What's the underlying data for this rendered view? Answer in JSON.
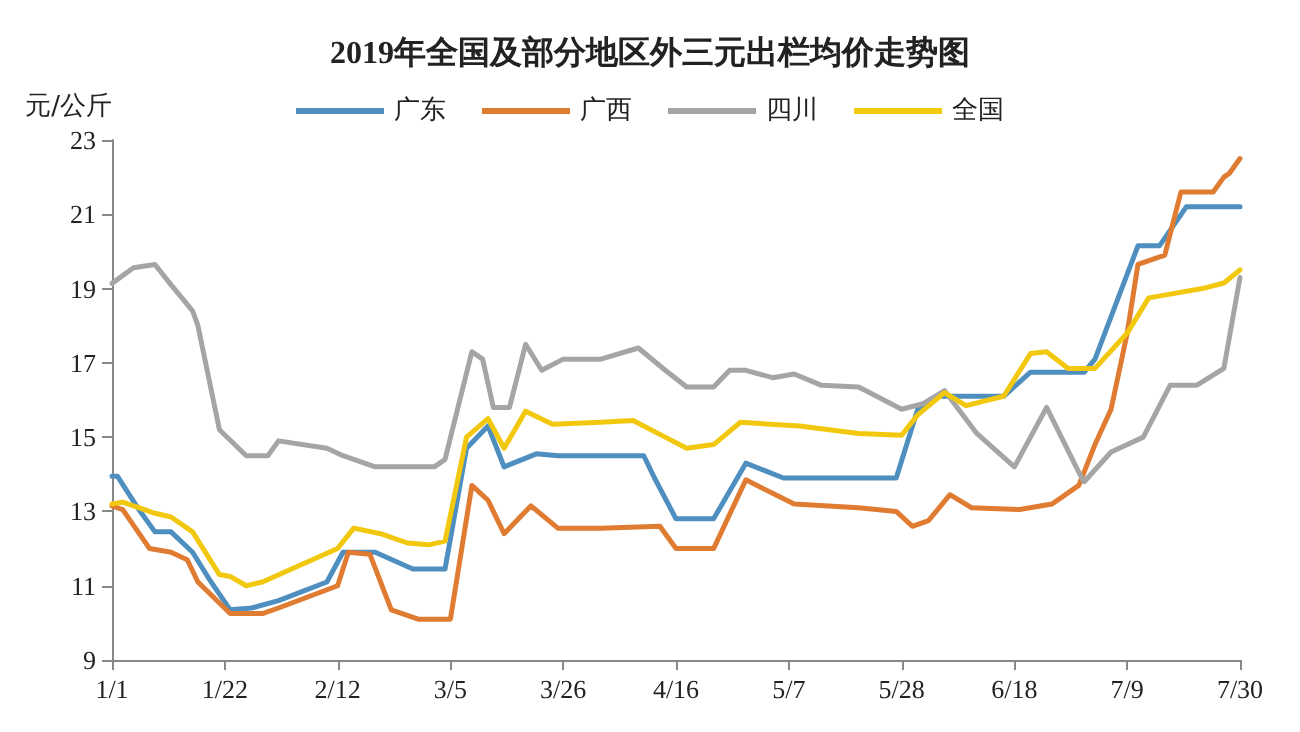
{
  "chart_data": {
    "type": "line",
    "title": "2019年全国及部分地区外三元出栏均价走势图",
    "ylabel": "元/公斤",
    "xlim": [
      "--01-01",
      "--07-30"
    ],
    "xticks": [
      {
        "value": "--01-01",
        "label": "1/1"
      },
      {
        "value": "--01-22",
        "label": "1/22"
      },
      {
        "value": "--02-12",
        "label": "2/12"
      },
      {
        "value": "--03-05",
        "label": "3/5"
      },
      {
        "value": "--03-26",
        "label": "3/26"
      },
      {
        "value": "--04-16",
        "label": "4/16"
      },
      {
        "value": "--05-07",
        "label": "5/7"
      },
      {
        "value": "--05-28",
        "label": "5/28"
      },
      {
        "value": "--06-18",
        "label": "6/18"
      },
      {
        "value": "--07-09",
        "label": "7/9"
      },
      {
        "value": "--07-30",
        "label": "7/30"
      }
    ],
    "ylim": [
      9,
      23
    ],
    "yticks": [
      9,
      11,
      13,
      15,
      17,
      19,
      21,
      23
    ],
    "grid": false,
    "legend": "top",
    "marker": "none",
    "line_style": "solid",
    "series": [
      {
        "name": "广东",
        "color": "#4e8fc0",
        "x": [
          "--01-01",
          "--01-02",
          "--01-06",
          "--01-09",
          "--01-12",
          "--01-16",
          "--01-19",
          "--01-23",
          "--01-27",
          "--02-01",
          "--02-10",
          "--02-13",
          "--02-19",
          "--02-26",
          "--03-04",
          "--03-08",
          "--03-12",
          "--03-15",
          "--03-21",
          "--03-25",
          "--04-10",
          "--04-12",
          "--04-16",
          "--04-23",
          "--04-29",
          "--05-06",
          "--05-20",
          "--05-27",
          "--05-31",
          "--06-04",
          "--06-16",
          "--06-21",
          "--07-01",
          "--07-03",
          "--07-11",
          "--07-15",
          "--07-20",
          "--07-30"
        ],
        "values": [
          13.95,
          13.95,
          13.05,
          12.45,
          12.45,
          11.9,
          11.2,
          10.35,
          10.4,
          10.6,
          11.1,
          11.9,
          11.9,
          11.45,
          11.45,
          14.7,
          15.3,
          14.2,
          14.55,
          14.5,
          14.5,
          13.9,
          12.8,
          12.8,
          14.3,
          13.9,
          13.9,
          13.9,
          15.75,
          16.1,
          16.1,
          16.75,
          16.75,
          17.1,
          20.15,
          20.15,
          21.2,
          21.2
        ]
      },
      {
        "name": "广西",
        "color": "#e07b32",
        "x": [
          "--01-01",
          "--01-03",
          "--01-08",
          "--01-12",
          "--01-15",
          "--01-17",
          "--01-23",
          "--01-29",
          "--02-01",
          "--02-12",
          "--02-14",
          "--02-18",
          "--02-22",
          "--02-27",
          "--03-05",
          "--03-09",
          "--03-12",
          "--03-15",
          "--03-20",
          "--03-25",
          "--04-02",
          "--04-13",
          "--04-16",
          "--04-23",
          "--04-29",
          "--05-08",
          "--05-20",
          "--05-27",
          "--05-30",
          "--06-02",
          "--06-06",
          "--06-10",
          "--06-19",
          "--06-25",
          "--06-30",
          "--07-03",
          "--07-06",
          "--07-09",
          "--07-11",
          "--07-16",
          "--07-19",
          "--07-25",
          "--07-27",
          "--07-28",
          "--07-30"
        ],
        "values": [
          13.15,
          13.05,
          12.0,
          11.9,
          11.7,
          11.1,
          10.25,
          10.25,
          10.4,
          11.0,
          11.9,
          11.85,
          10.35,
          10.1,
          10.1,
          13.7,
          13.3,
          12.4,
          13.15,
          12.55,
          12.55,
          12.6,
          12.0,
          12.0,
          13.85,
          13.2,
          13.1,
          13.0,
          12.6,
          12.75,
          13.45,
          13.1,
          13.05,
          13.2,
          13.7,
          14.8,
          15.75,
          17.8,
          19.65,
          19.9,
          21.6,
          21.6,
          22.0,
          22.1,
          22.5
        ]
      },
      {
        "name": "四川",
        "color": "#a5a5a5",
        "x": [
          "--01-01",
          "--01-05",
          "--01-09",
          "--01-12",
          "--01-16",
          "--01-17",
          "--01-21",
          "--01-26",
          "--01-30",
          "--02-01",
          "--02-10",
          "--02-13",
          "--02-19",
          "--03-02",
          "--03-04",
          "--03-09",
          "--03-11",
          "--03-13",
          "--03-16",
          "--03-19",
          "--03-22",
          "--03-26",
          "--04-02",
          "--04-09",
          "--04-14",
          "--04-18",
          "--04-23",
          "--04-26",
          "--04-29",
          "--05-04",
          "--05-08",
          "--05-13",
          "--05-20",
          "--05-22",
          "--05-28",
          "--06-01",
          "--06-05",
          "--06-11",
          "--06-18",
          "--06-24",
          "--06-30",
          "--07-01",
          "--07-06",
          "--07-12",
          "--07-17",
          "--07-22",
          "--07-27",
          "--07-30"
        ],
        "values": [
          19.14,
          19.56,
          19.65,
          19.1,
          18.4,
          18.0,
          15.2,
          14.5,
          14.5,
          14.9,
          14.7,
          14.5,
          14.2,
          14.2,
          14.4,
          17.3,
          17.1,
          15.8,
          15.8,
          17.5,
          16.8,
          17.1,
          17.1,
          17.4,
          16.8,
          16.35,
          16.35,
          16.8,
          16.8,
          16.6,
          16.7,
          16.4,
          16.35,
          16.2,
          15.75,
          15.9,
          16.25,
          15.1,
          14.2,
          15.8,
          14.05,
          13.8,
          14.6,
          15.0,
          16.4,
          16.4,
          16.85,
          19.3
        ]
      },
      {
        "name": "全国",
        "color": "#f2c80f",
        "x": [
          "--01-01",
          "--01-03",
          "--01-09",
          "--01-12",
          "--01-16",
          "--01-21",
          "--01-23",
          "--01-26",
          "--01-29",
          "--02-12",
          "--02-15",
          "--02-20",
          "--02-25",
          "--03-01",
          "--03-04",
          "--03-08",
          "--03-12",
          "--03-15",
          "--03-19",
          "--03-24",
          "--04-02",
          "--04-08",
          "--04-14",
          "--04-18",
          "--04-23",
          "--04-28",
          "--05-09",
          "--05-20",
          "--05-28",
          "--05-31",
          "--06-05",
          "--06-09",
          "--06-16",
          "--06-21",
          "--06-24",
          "--06-28",
          "--07-03",
          "--07-09",
          "--07-13",
          "--07-17",
          "--07-23",
          "--07-27",
          "--07-30"
        ],
        "values": [
          13.2,
          13.25,
          12.95,
          12.85,
          12.45,
          11.3,
          11.25,
          11.0,
          11.1,
          12.0,
          12.55,
          12.4,
          12.15,
          12.1,
          12.2,
          15.0,
          15.5,
          14.7,
          15.7,
          15.35,
          15.4,
          15.45,
          15.0,
          14.7,
          14.8,
          15.4,
          15.3,
          15.1,
          15.05,
          15.6,
          16.2,
          15.85,
          16.1,
          17.25,
          17.3,
          16.85,
          16.85,
          17.8,
          18.75,
          18.85,
          19.0,
          19.15,
          19.5
        ]
      }
    ]
  }
}
